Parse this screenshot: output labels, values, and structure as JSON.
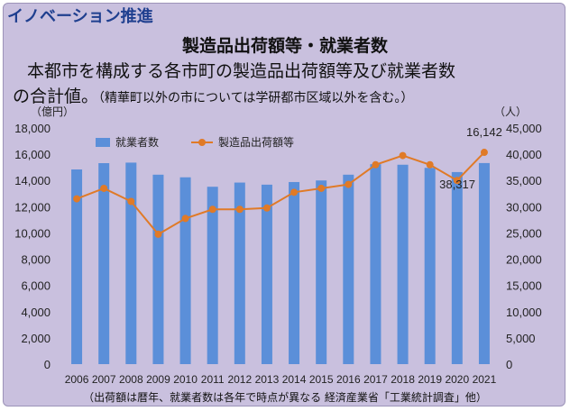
{
  "header": {
    "label": "イノベーション推進"
  },
  "description": {
    "line1": "本都市を構成する各市町の製造品出荷額等及び就業者数",
    "line2": "の合計値。",
    "note": "（精華町以外の市については学研都市区域以外を含む。）"
  },
  "footer": {
    "note": "（出荷額は暦年、就業者数は各年で時点が異なる 経済産業省「工業統計調査」他）"
  },
  "chart_data": {
    "type": "bar",
    "title": "製造品出荷額等・就業者数",
    "categories": [
      "2006",
      "2007",
      "2008",
      "2009",
      "2010",
      "2011",
      "2012",
      "2013",
      "2014",
      "2015",
      "2016",
      "2017",
      "2018",
      "2019",
      "2020",
      "2021"
    ],
    "left_axis": {
      "unit": "（億円）",
      "ylim": [
        0,
        18000
      ],
      "ticks": [
        "0",
        "2,000",
        "4,000",
        "6,000",
        "8,000",
        "10,000",
        "12,000",
        "14,000",
        "16,000",
        "18,000"
      ]
    },
    "right_axis": {
      "unit": "（人）",
      "ylim": [
        0,
        45000
      ],
      "ticks": [
        "0",
        "5,000",
        "10,000",
        "15,000",
        "20,000",
        "25,000",
        "30,000",
        "35,000",
        "40,000",
        "45,000"
      ]
    },
    "series": [
      {
        "name": "就業者数",
        "type": "bar",
        "axis": "right",
        "color": "#5b8fd9",
        "values": [
          37100,
          38300,
          38400,
          36100,
          35600,
          33800,
          34600,
          34200,
          34700,
          35000,
          36100,
          38100,
          38000,
          37400,
          36600,
          38317
        ]
      },
      {
        "name": "製造品出荷額等",
        "type": "line",
        "axis": "left",
        "color": "#e07a27",
        "values": [
          12600,
          13400,
          12400,
          9900,
          11100,
          11800,
          11800,
          11900,
          13100,
          13400,
          13700,
          15200,
          15900,
          15200,
          14000,
          16142
        ]
      }
    ],
    "data_labels": {
      "line_last": "16,142",
      "bar_last": "38,317"
    },
    "legend_position": "top-left",
    "grid": false
  }
}
